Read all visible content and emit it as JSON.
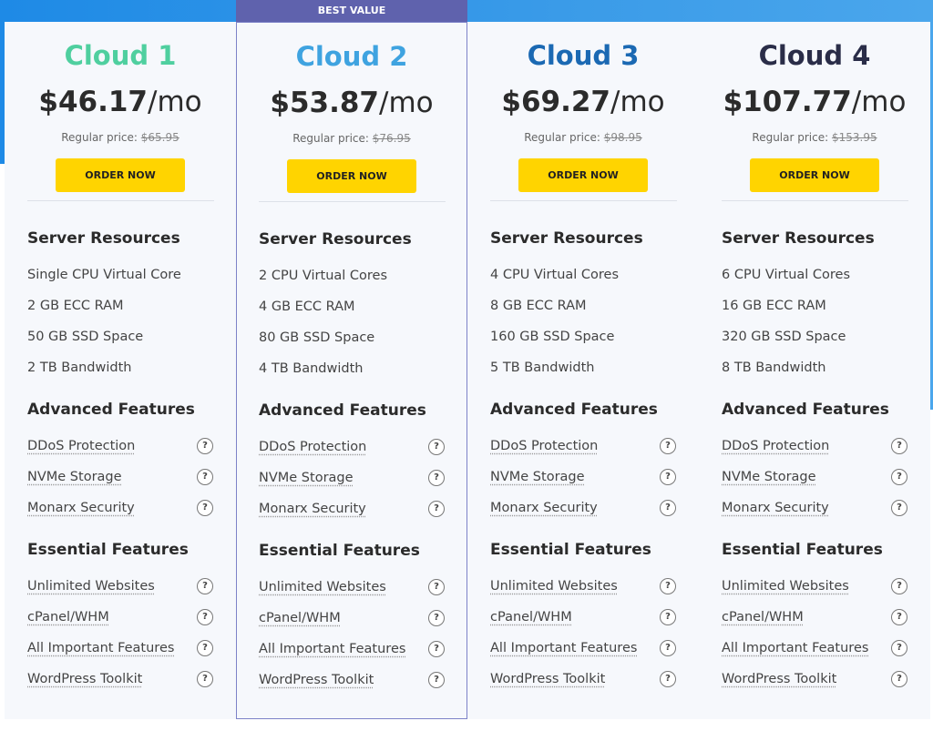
{
  "badge": "BEST VALUE",
  "help_icon": "?",
  "plans": [
    {
      "name": "Cloud 1",
      "price": "$46.17",
      "per": "/mo",
      "regular_label": "Regular price:",
      "regular_price": "$65.95",
      "button": "ORDER NOW",
      "sections": [
        {
          "title": "Server Resources",
          "items": [
            "Single CPU Virtual Core",
            "2 GB ECC RAM",
            "50 GB SSD Space",
            "2 TB Bandwidth"
          ]
        },
        {
          "title": "Advanced Features",
          "items": [
            "DDoS Protection",
            "NVMe Storage",
            "Monarx Security"
          ]
        },
        {
          "title": "Essential Features",
          "items": [
            "Unlimited Websites",
            "cPanel/WHM",
            "All Important Features",
            "WordPress Toolkit"
          ]
        }
      ]
    },
    {
      "name": "Cloud 2",
      "price": "$53.87",
      "per": "/mo",
      "regular_label": "Regular price:",
      "regular_price": "$76.95",
      "button": "ORDER NOW",
      "sections": [
        {
          "title": "Server Resources",
          "items": [
            "2 CPU Virtual Cores",
            "4 GB ECC RAM",
            "80 GB SSD Space",
            "4 TB Bandwidth"
          ]
        },
        {
          "title": "Advanced Features",
          "items": [
            "DDoS Protection",
            "NVMe Storage",
            "Monarx Security"
          ]
        },
        {
          "title": "Essential Features",
          "items": [
            "Unlimited Websites",
            "cPanel/WHM",
            "All Important Features",
            "WordPress Toolkit"
          ]
        }
      ]
    },
    {
      "name": "Cloud 3",
      "price": "$69.27",
      "per": "/mo",
      "regular_label": "Regular price:",
      "regular_price": "$98.95",
      "button": "ORDER NOW",
      "sections": [
        {
          "title": "Server Resources",
          "items": [
            "4 CPU Virtual Cores",
            "8 GB ECC RAM",
            "160 GB SSD Space",
            "5 TB Bandwidth"
          ]
        },
        {
          "title": "Advanced Features",
          "items": [
            "DDoS Protection",
            "NVMe Storage",
            "Monarx Security"
          ]
        },
        {
          "title": "Essential Features",
          "items": [
            "Unlimited Websites",
            "cPanel/WHM",
            "All Important Features",
            "WordPress Toolkit"
          ]
        }
      ]
    },
    {
      "name": "Cloud 4",
      "price": "$107.77",
      "per": "/mo",
      "regular_label": "Regular price:",
      "regular_price": "$153.95",
      "button": "ORDER NOW",
      "sections": [
        {
          "title": "Server Resources",
          "items": [
            "6 CPU Virtual Cores",
            "16 GB ECC RAM",
            "320 GB SSD Space",
            "8 TB Bandwidth"
          ]
        },
        {
          "title": "Advanced Features",
          "items": [
            "DDoS Protection",
            "NVMe Storage",
            "Monarx Security"
          ]
        },
        {
          "title": "Essential Features",
          "items": [
            "Unlimited Websites",
            "cPanel/WHM",
            "All Important Features",
            "WordPress Toolkit"
          ]
        }
      ]
    }
  ]
}
